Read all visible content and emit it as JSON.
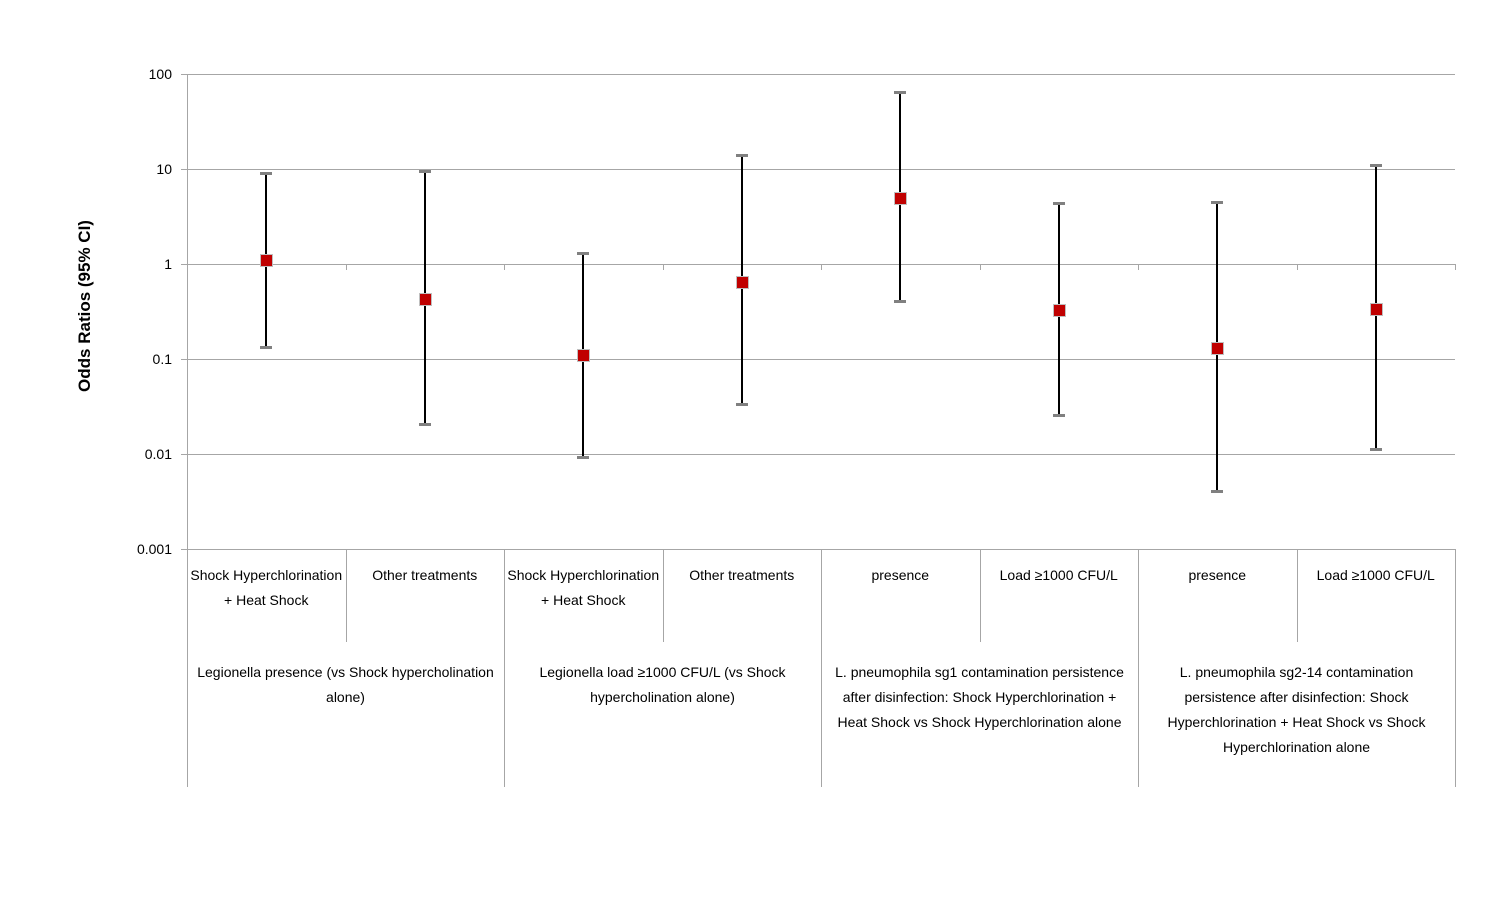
{
  "chart_data": {
    "type": "scatter",
    "subtype": "forest-plot-odds-ratios",
    "title": "",
    "ylabel": "Odds Ratios (95% CI)",
    "xlabel": "",
    "scale": "log",
    "ylim": [
      0.001,
      100
    ],
    "y_tick_values": [
      100,
      10,
      1,
      0.1,
      0.01,
      0.001
    ],
    "y_tick_labels": [
      "100",
      "10",
      "1",
      "0.1",
      "0.01",
      "0.001"
    ],
    "x_axis_cross_value": 1,
    "grid": "horizontal",
    "legend": "none",
    "marker": {
      "shape": "square",
      "color": "#C00000",
      "border_color": "#BFBFBF"
    },
    "error_bar": {
      "line_color": "#000000",
      "cap_color": "#808080"
    },
    "colors": {
      "gridline": "#A6A6A6",
      "axis": "#A6A6A6",
      "text": "#000000"
    },
    "groups": [
      {
        "label": "Legionella presence (vs Shock hypercholination alone)",
        "categories": [
          "Shock Hyperchlorination + Heat Shock",
          "Other treatments"
        ]
      },
      {
        "label": "Legionella load ≥1000 CFU/L (vs Shock hypercholination alone)",
        "categories": [
          "Shock Hyperchlorination + Heat Shock",
          "Other treatments"
        ]
      },
      {
        "label": "L. pneumophila sg1 contamination persistence after disinfection: Shock Hyperchlorination + Heat Shock vs Shock Hyperchlorination alone",
        "categories": [
          "presence",
          "Load ≥1000 CFU/L"
        ]
      },
      {
        "label": "L. pneumophila sg2-14 contamination persistence after disinfection: Shock Hyperchlorination + Heat Shock vs Shock Hyperchlorination alone",
        "categories": [
          "presence",
          "Load ≥1000 CFU/L"
        ]
      }
    ],
    "points": [
      {
        "category": "Shock Hyperchlorination + Heat Shock",
        "group_index": 0,
        "odds_ratio": 1.1,
        "ci_low": 0.13,
        "ci_high": 9
      },
      {
        "category": "Other treatments",
        "group_index": 0,
        "odds_ratio": 0.43,
        "ci_low": 0.02,
        "ci_high": 9.5
      },
      {
        "category": "Shock Hyperchlorination + Heat Shock",
        "group_index": 1,
        "odds_ratio": 0.11,
        "ci_low": 0.009,
        "ci_high": 1.3
      },
      {
        "category": "Other treatments",
        "group_index": 1,
        "odds_ratio": 0.65,
        "ci_low": 0.033,
        "ci_high": 14
      },
      {
        "category": "presence",
        "group_index": 2,
        "odds_ratio": 5.0,
        "ci_low": 0.4,
        "ci_high": 65
      },
      {
        "category": "Load ≥1000 CFU/L",
        "group_index": 2,
        "odds_ratio": 0.33,
        "ci_low": 0.025,
        "ci_high": 4.4
      },
      {
        "category": "presence",
        "group_index": 3,
        "odds_ratio": 0.13,
        "ci_low": 0.004,
        "ci_high": 4.5
      },
      {
        "category": "Load ≥1000 CFU/L",
        "group_index": 3,
        "odds_ratio": 0.34,
        "ci_low": 0.011,
        "ci_high": 11
      }
    ]
  }
}
